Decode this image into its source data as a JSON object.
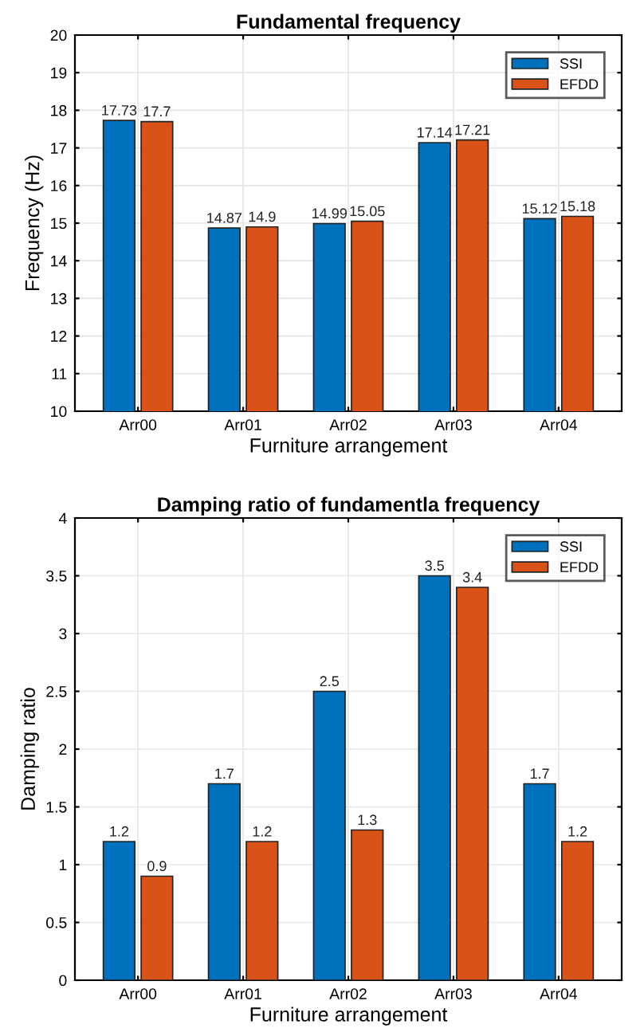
{
  "chart_data": [
    {
      "type": "bar",
      "title": "Fundamental frequency",
      "xlabel": "Furniture arrangement",
      "ylabel": "Frequency (Hz)",
      "categories": [
        "Arr00",
        "Arr01",
        "Arr02",
        "Arr03",
        "Arr04"
      ],
      "series": [
        {
          "name": "SSI",
          "color": "#0072bd",
          "values": [
            17.73,
            14.87,
            14.99,
            17.14,
            15.12
          ]
        },
        {
          "name": "EFDD",
          "color": "#d95319",
          "values": [
            17.7,
            14.9,
            15.05,
            17.21,
            15.18
          ]
        }
      ],
      "ylim": [
        10,
        20
      ],
      "yticks": [
        10,
        11,
        12,
        13,
        14,
        15,
        16,
        17,
        18,
        19,
        20
      ],
      "grid": true,
      "legend": "top right",
      "data_labels": true
    },
    {
      "type": "bar",
      "title": "Damping ratio of fundamentla frequency",
      "xlabel": "Furniture arrangement",
      "ylabel": "Damping ratio",
      "categories": [
        "Arr00",
        "Arr01",
        "Arr02",
        "Arr03",
        "Arr04"
      ],
      "series": [
        {
          "name": "SSI",
          "color": "#0072bd",
          "values": [
            1.2,
            1.7,
            2.5,
            3.5,
            1.7
          ]
        },
        {
          "name": "EFDD",
          "color": "#d95319",
          "values": [
            0.9,
            1.2,
            1.3,
            3.4,
            1.2
          ]
        }
      ],
      "ylim": [
        0,
        4
      ],
      "yticks": [
        0,
        0.5,
        1,
        1.5,
        2,
        2.5,
        3,
        3.5,
        4
      ],
      "grid": true,
      "legend": "top right",
      "data_labels": true
    }
  ]
}
